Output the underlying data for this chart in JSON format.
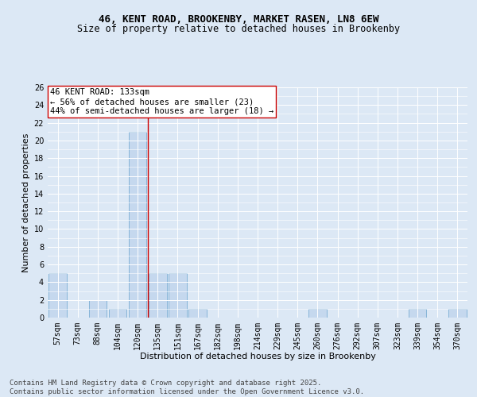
{
  "title1": "46, KENT ROAD, BROOKENBY, MARKET RASEN, LN8 6EW",
  "title2": "Size of property relative to detached houses in Brookenby",
  "xlabel": "Distribution of detached houses by size in Brookenby",
  "ylabel": "Number of detached properties",
  "categories": [
    "57sqm",
    "73sqm",
    "88sqm",
    "104sqm",
    "120sqm",
    "135sqm",
    "151sqm",
    "167sqm",
    "182sqm",
    "198sqm",
    "214sqm",
    "229sqm",
    "245sqm",
    "260sqm",
    "276sqm",
    "292sqm",
    "307sqm",
    "323sqm",
    "339sqm",
    "354sqm",
    "370sqm"
  ],
  "values": [
    5,
    0,
    2,
    1,
    21,
    5,
    5,
    1,
    0,
    0,
    0,
    0,
    0,
    1,
    0,
    0,
    0,
    0,
    1,
    0,
    1
  ],
  "bar_color": "#c5d8ee",
  "bar_edge_color": "#7aadd4",
  "vline_x": 4.5,
  "vline_color": "#cc0000",
  "annotation_text": "46 KENT ROAD: 133sqm\n← 56% of detached houses are smaller (23)\n44% of semi-detached houses are larger (18) →",
  "annotation_box_color": "#ffffff",
  "annotation_box_edge": "#cc0000",
  "ylim": [
    0,
    26
  ],
  "yticks": [
    0,
    2,
    4,
    6,
    8,
    10,
    12,
    14,
    16,
    18,
    20,
    22,
    24,
    26
  ],
  "bg_color": "#dce8f5",
  "plot_bg_color": "#dce8f5",
  "footer_text": "Contains HM Land Registry data © Crown copyright and database right 2025.\nContains public sector information licensed under the Open Government Licence v3.0.",
  "title_fontsize": 9,
  "subtitle_fontsize": 8.5,
  "axis_label_fontsize": 8,
  "tick_fontsize": 7,
  "annotation_fontsize": 7.5,
  "footer_fontsize": 6.5
}
